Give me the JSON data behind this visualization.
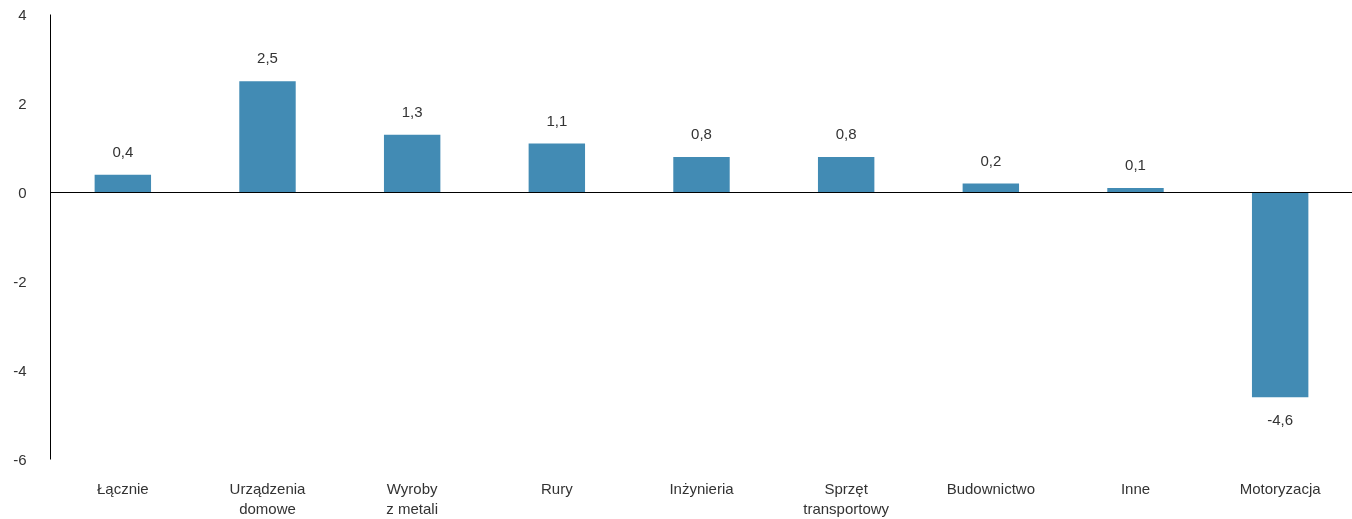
{
  "chart_data": {
    "type": "bar",
    "categories": [
      "Łącznie",
      "Urządzenia\ndomowe",
      "Wyroby\nz metali",
      "Rury",
      "Inżynieria",
      "Sprzęt\ntransportowy",
      "Budownictwo",
      "Inne",
      "Motoryzacja"
    ],
    "values": [
      0.4,
      2.5,
      1.3,
      1.1,
      0.8,
      0.8,
      0.2,
      0.1,
      -4.6
    ],
    "value_labels": [
      "0,4",
      "2,5",
      "1,3",
      "1,1",
      "0,8",
      "0,8",
      "0,2",
      "0,1",
      "-4,6"
    ],
    "color": "#428bb4",
    "ylim": [
      -6,
      4
    ],
    "yticks": [
      -6,
      -4,
      -2,
      0,
      2,
      4
    ],
    "ref_lines": [
      {
        "axis": "y",
        "value": 0,
        "color": "#000000"
      }
    ]
  }
}
